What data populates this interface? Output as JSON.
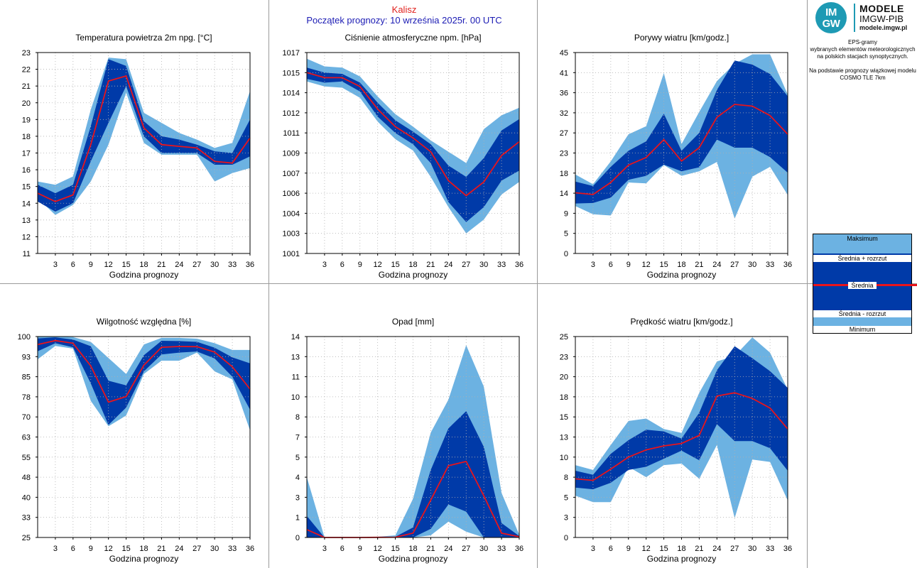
{
  "header": {
    "city": "Kalisz",
    "forecast_start": "Początek prognozy: 10 września 2025r. 00 UTC"
  },
  "colors": {
    "extreme_band": "#6cb2e2",
    "spread_band": "#003aa8",
    "mean_line": "#e8141c",
    "grid": "#b0b0b0"
  },
  "sidebar": {
    "logo_circle_top": "IM",
    "logo_circle_bottom": "GW",
    "logo_line1": "MODELE",
    "logo_line2": "IMGW-PIB",
    "logo_line3": "modele.imgw.pl",
    "desc_lines": [
      "EPS-gramy",
      "wybranych elementów meteorologicznych",
      "na polskich stacjach  synoptycznych.",
      "",
      "Na podstawie prognozy wiązkowej modelu",
      "COSMO TLE 7km"
    ],
    "legend": {
      "max": "Maksimum",
      "mean_plus": "Średnia + rozrzut",
      "mean": "Średnia",
      "mean_minus": "Średnia - rozrzut",
      "min": "Minimum"
    }
  },
  "chart_data": [
    {
      "type": "area",
      "title": "Temperatura powietrza 2m npg. [°C]",
      "xlabel": "Godzina prognozy",
      "ylabel": "",
      "x": [
        0,
        3,
        6,
        9,
        12,
        15,
        18,
        21,
        24,
        27,
        30,
        33,
        36
      ],
      "xticks": [
        "3",
        "6",
        "9",
        "12",
        "15",
        "18",
        "21",
        "24",
        "27",
        "30",
        "33",
        "36"
      ],
      "yticks": [
        "11",
        "12",
        "13",
        "14",
        "15",
        "16",
        "17",
        "18",
        "19",
        "20",
        "21",
        "22",
        "23"
      ],
      "ylim": [
        11,
        23
      ],
      "grid": true,
      "series": [
        {
          "name": "Maksimum",
          "values": [
            15.3,
            15.1,
            15.6,
            19.6,
            22.7,
            22.6,
            19.4,
            18.8,
            18.2,
            17.8,
            17.3,
            17.6,
            20.7
          ]
        },
        {
          "name": "Średnia + rozrzut",
          "values": [
            15.1,
            14.6,
            15.1,
            18.6,
            22.6,
            22.2,
            18.9,
            18.0,
            17.8,
            17.5,
            17.1,
            17.0,
            19.0
          ]
        },
        {
          "name": "Średnia",
          "values": [
            14.6,
            14.1,
            14.5,
            17.5,
            21.3,
            21.6,
            18.5,
            17.5,
            17.4,
            17.3,
            16.5,
            16.4,
            17.9
          ]
        },
        {
          "name": "Średnia - rozrzut",
          "values": [
            14.1,
            13.5,
            14.0,
            16.5,
            18.8,
            21.0,
            18.0,
            17.0,
            17.0,
            17.0,
            16.3,
            16.3,
            16.8
          ]
        },
        {
          "name": "Minimum",
          "values": [
            14.3,
            13.3,
            13.9,
            15.3,
            17.5,
            20.6,
            17.6,
            16.9,
            16.9,
            16.9,
            15.3,
            15.8,
            16.1
          ]
        }
      ]
    },
    {
      "type": "area",
      "title": "Ciśnienie atmosferyczne npm. [hPa]",
      "xlabel": "Godzina prognozy",
      "ylabel": "",
      "x": [
        0,
        3,
        6,
        9,
        12,
        15,
        18,
        21,
        24,
        27,
        30,
        33,
        36
      ],
      "xticks": [
        "3",
        "6",
        "9",
        "12",
        "15",
        "18",
        "21",
        "24",
        "27",
        "30",
        "33",
        "36"
      ],
      "yticks": [
        "1001",
        "1003",
        "1004",
        "1006",
        "1007",
        "1009",
        "1011",
        "1012",
        "1014",
        "1015",
        "1017"
      ],
      "ylim": [
        1001,
        1017
      ],
      "grid": true,
      "series": [
        {
          "name": "Maksimum",
          "values": [
            1016.5,
            1015.9,
            1015.8,
            1015.1,
            1013.5,
            1012.1,
            1011.1,
            1010.0,
            1009.1,
            1008.2,
            1010.9,
            1012.0,
            1012.6
          ]
        },
        {
          "name": "Średnia + rozrzut",
          "values": [
            1015.8,
            1015.4,
            1015.3,
            1014.6,
            1013.0,
            1011.6,
            1010.7,
            1009.7,
            1008.0,
            1007.1,
            1008.6,
            1010.8,
            1011.7
          ]
        },
        {
          "name": "Średnia",
          "values": [
            1015.4,
            1015.0,
            1015.0,
            1014.3,
            1012.5,
            1011.1,
            1010.2,
            1009.1,
            1006.8,
            1005.6,
            1006.7,
            1008.8,
            1009.9
          ]
        },
        {
          "name": "Średnia - rozrzut",
          "values": [
            1014.9,
            1014.6,
            1014.7,
            1013.9,
            1011.9,
            1010.6,
            1009.7,
            1008.2,
            1005.1,
            1003.5,
            1004.7,
            1006.8,
            1007.6
          ]
        },
        {
          "name": "Minimum",
          "values": [
            1014.7,
            1014.3,
            1014.2,
            1013.4,
            1011.5,
            1010.1,
            1009.2,
            1007.1,
            1004.7,
            1002.6,
            1003.7,
            1005.7,
            1006.7
          ]
        }
      ]
    },
    {
      "type": "area",
      "title": "Porywy wiatru [km/godz.]",
      "xlabel": "Godzina prognozy",
      "ylabel": "",
      "x": [
        0,
        3,
        6,
        9,
        12,
        15,
        18,
        21,
        24,
        27,
        30,
        33,
        36
      ],
      "xticks": [
        "3",
        "6",
        "9",
        "12",
        "15",
        "18",
        "21",
        "24",
        "27",
        "30",
        "33",
        "36"
      ],
      "yticks": [
        "0",
        "5",
        "9",
        "14",
        "18",
        "23",
        "27",
        "32",
        "36",
        "41",
        "45"
      ],
      "ylim": [
        0,
        45
      ],
      "grid": true,
      "series": [
        {
          "name": "Maksimum",
          "values": [
            17.7,
            15.5,
            20.6,
            26.7,
            28.5,
            40.4,
            24.5,
            31.7,
            38.6,
            42.5,
            44.6,
            44.6,
            35.6
          ]
        },
        {
          "name": "Średnia + rozrzut",
          "values": [
            16.1,
            15.1,
            19.4,
            23.0,
            25.1,
            31.3,
            23.0,
            27.0,
            36.6,
            43.2,
            42.3,
            40.2,
            35.2
          ]
        },
        {
          "name": "Średnia",
          "values": [
            13.6,
            13.2,
            15.9,
            19.8,
            21.5,
            25.5,
            20.7,
            23.7,
            30.5,
            33.4,
            33.0,
            30.9,
            26.7
          ]
        },
        {
          "name": "Średnia - rozrzut",
          "values": [
            11.2,
            11.3,
            12.5,
            16.5,
            17.4,
            19.9,
            18.4,
            19.3,
            25.5,
            23.7,
            23.7,
            21.6,
            18.1
          ]
        },
        {
          "name": "Minimum",
          "values": [
            10.6,
            8.8,
            8.5,
            15.9,
            15.7,
            19.8,
            17.4,
            18.4,
            20.5,
            7.8,
            17.2,
            19.4,
            13.1
          ]
        }
      ]
    },
    {
      "type": "area",
      "title": "Wilgotność względna [%]",
      "xlabel": "Godzina prognozy",
      "ylabel": "",
      "x": [
        0,
        3,
        6,
        9,
        12,
        15,
        18,
        21,
        24,
        27,
        30,
        33,
        36
      ],
      "xticks": [
        "3",
        "6",
        "9",
        "12",
        "15",
        "18",
        "21",
        "24",
        "27",
        "30",
        "33",
        "36"
      ],
      "yticks": [
        "25",
        "33",
        "40",
        "48",
        "55",
        "63",
        "70",
        "78",
        "85",
        "93",
        "100"
      ],
      "ylim": [
        25,
        100
      ],
      "grid": true,
      "series": [
        {
          "name": "Maksimum",
          "values": [
            100.0,
            100.0,
            99.8,
            98.0,
            92.0,
            86.0,
            97.0,
            99.5,
            99.5,
            99.2,
            97.5,
            95.0,
            95.0
          ]
        },
        {
          "name": "Średnia + rozrzut",
          "values": [
            99.3,
            99.7,
            98.9,
            96.4,
            83.5,
            81.8,
            93.0,
            98.4,
            98.3,
            98.0,
            95.8,
            92.2,
            90.0
          ]
        },
        {
          "name": "Średnia",
          "values": [
            97.0,
            98.5,
            97.5,
            89.0,
            75.5,
            77.6,
            89.3,
            96.0,
            96.3,
            96.2,
            94.2,
            88.7,
            80.4
          ]
        },
        {
          "name": "Średnia - rozrzut",
          "values": [
            94.5,
            97.5,
            96.0,
            82.5,
            67.0,
            73.5,
            87.0,
            93.3,
            94.0,
            94.4,
            91.8,
            85.0,
            72.7
          ]
        },
        {
          "name": "Minimum",
          "values": [
            91.5,
            96.5,
            95.5,
            76.0,
            66.5,
            70.5,
            86.0,
            91.0,
            91.0,
            94.0,
            87.0,
            84.0,
            65.0
          ]
        }
      ]
    },
    {
      "type": "area",
      "title": "Opad [mm]",
      "xlabel": "Godzina prognozy",
      "ylabel": "",
      "x": [
        0,
        3,
        6,
        9,
        12,
        15,
        18,
        21,
        24,
        27,
        30,
        33,
        36
      ],
      "xticks": [
        "3",
        "6",
        "9",
        "12",
        "15",
        "18",
        "21",
        "24",
        "27",
        "30",
        "33",
        "36"
      ],
      "yticks": [
        "0",
        "1",
        "3",
        "4",
        "5",
        "7",
        "8",
        "10",
        "11",
        "13",
        "14"
      ],
      "ylim": [
        0,
        14
      ],
      "grid": true,
      "series": [
        {
          "name": "Maksimum",
          "values": [
            4.2,
            0.0,
            0.0,
            0.0,
            0.05,
            0.15,
            2.7,
            7.3,
            9.6,
            13.4,
            10.5,
            3.1,
            0.2
          ]
        },
        {
          "name": "Średnia + rozrzut",
          "values": [
            1.5,
            0.0,
            0.0,
            0.0,
            0.03,
            0.05,
            0.7,
            4.7,
            7.6,
            8.8,
            6.3,
            1.0,
            0.1
          ]
        },
        {
          "name": "Średnia",
          "values": [
            0.55,
            0.0,
            0.0,
            0.0,
            0.01,
            0.02,
            0.3,
            2.6,
            5.0,
            5.3,
            2.9,
            0.3,
            0.05
          ]
        },
        {
          "name": "Średnia - rozrzut",
          "values": [
            0.0,
            0.0,
            0.0,
            0.0,
            0.0,
            0.0,
            0.0,
            0.6,
            2.3,
            1.8,
            0.0,
            0.0,
            0.0
          ]
        },
        {
          "name": "Minimum",
          "values": [
            0.0,
            0.0,
            0.0,
            0.0,
            0.0,
            0.0,
            0.0,
            0.15,
            1.1,
            0.4,
            0.0,
            0.0,
            0.0
          ]
        }
      ]
    },
    {
      "type": "area",
      "title": "Prędkość wiatru [km/godz.]",
      "xlabel": "Godzina prognozy",
      "ylabel": "",
      "x": [
        0,
        3,
        6,
        9,
        12,
        15,
        18,
        21,
        24,
        27,
        30,
        33,
        36
      ],
      "xticks": [
        "3",
        "6",
        "9",
        "12",
        "15",
        "18",
        "21",
        "24",
        "27",
        "30",
        "33",
        "36"
      ],
      "yticks": [
        "0",
        "3",
        "5",
        "8",
        "10",
        "13",
        "15",
        "18",
        "20",
        "23",
        "25"
      ],
      "ylim": [
        0,
        25
      ],
      "grid": true,
      "series": [
        {
          "name": "Maksimum",
          "values": [
            9.0,
            8.4,
            11.5,
            14.5,
            14.8,
            13.5,
            13.0,
            18.0,
            21.9,
            22.6,
            24.9,
            23.0,
            18.4
          ]
        },
        {
          "name": "Średnia + rozrzut",
          "values": [
            8.3,
            7.8,
            10.4,
            12.1,
            13.4,
            13.2,
            12.3,
            15.5,
            20.8,
            23.8,
            22.3,
            20.7,
            18.6
          ]
        },
        {
          "name": "Średnia",
          "values": [
            7.3,
            7.1,
            8.5,
            10.0,
            10.9,
            11.4,
            11.7,
            12.7,
            17.6,
            18.0,
            17.3,
            16.1,
            13.5
          ]
        },
        {
          "name": "Średnia - rozrzut",
          "values": [
            6.2,
            6.0,
            6.8,
            8.4,
            8.8,
            9.8,
            10.8,
            9.6,
            14.1,
            12.0,
            12.0,
            11.1,
            8.3
          ]
        },
        {
          "name": "Minimum",
          "values": [
            5.2,
            4.4,
            4.4,
            8.8,
            7.5,
            9.0,
            9.2,
            7.3,
            11.5,
            2.4,
            9.7,
            9.4,
            4.6
          ]
        }
      ]
    }
  ]
}
